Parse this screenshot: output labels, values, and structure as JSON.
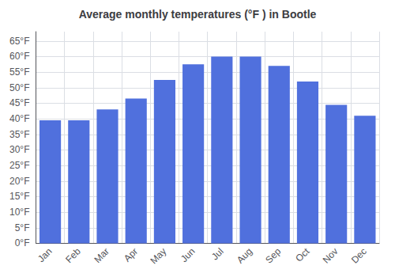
{
  "chart_data": {
    "type": "bar",
    "title": "Average monthly temperatures (°F ) in Bootle",
    "categories": [
      "Jan",
      "Feb",
      "Mar",
      "Apr",
      "May",
      "Jun",
      "Jul",
      "Aug",
      "Sep",
      "Oct",
      "Nov",
      "Dec"
    ],
    "values": [
      39.5,
      39.5,
      43.0,
      46.5,
      52.5,
      57.5,
      60.0,
      60.0,
      57.0,
      52.0,
      44.5,
      41.0
    ],
    "ylim": [
      0,
      68
    ],
    "yticks": [
      {
        "value": 0,
        "label": "0°F"
      },
      {
        "value": 5,
        "label": "5°F"
      },
      {
        "value": 10,
        "label": "10°F"
      },
      {
        "value": 15,
        "label": "15°F"
      },
      {
        "value": 20,
        "label": "20°F"
      },
      {
        "value": 25,
        "label": "25°F"
      },
      {
        "value": 30,
        "label": "30°F"
      },
      {
        "value": 35,
        "label": "35°F"
      },
      {
        "value": 40,
        "label": "40°F"
      },
      {
        "value": 45,
        "label": "45°F"
      },
      {
        "value": 50,
        "label": "50°F"
      },
      {
        "value": 55,
        "label": "55°F"
      },
      {
        "value": 60,
        "label": "60°F"
      },
      {
        "value": 65,
        "label": "65°F"
      }
    ],
    "grid": true
  }
}
